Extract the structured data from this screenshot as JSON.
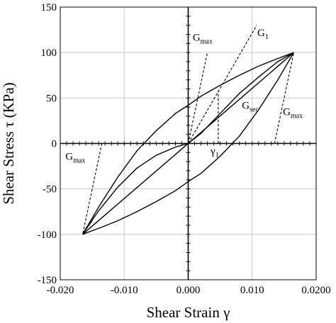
{
  "chart_data": {
    "type": "line",
    "xlabel": "Shear Strain γ",
    "ylabel": "Shear Stress τ (KPa)",
    "xlim": [
      -0.02,
      0.02
    ],
    "ylim": [
      -150,
      150
    ],
    "x_ticks": [
      "-0.020",
      "-0.010",
      "0.000",
      "0.010",
      "0.0200"
    ],
    "x_tick_values": [
      -0.02,
      -0.01,
      0.0,
      0.01,
      0.02
    ],
    "y_ticks": [
      "-150",
      "-100",
      "-50",
      "0",
      "50",
      "100",
      "150"
    ],
    "y_tick_values": [
      -150,
      -100,
      -50,
      0,
      50,
      100,
      150
    ],
    "grid": true,
    "series": [
      {
        "style": "solid",
        "x": [
          -0.0165,
          -0.014,
          -0.011,
          -0.008,
          -0.005,
          -0.002,
          0.0,
          0.002,
          0.005,
          0.008,
          0.011,
          0.0135,
          0.0165
        ],
        "y": [
          -100,
          -70,
          -37,
          -8,
          14,
          33,
          42,
          52,
          64,
          75,
          85,
          92,
          100
        ]
      },
      {
        "style": "solid",
        "x": [
          0.0165,
          0.014,
          0.011,
          0.008,
          0.005,
          0.002,
          0.0,
          -0.002,
          -0.005,
          -0.008,
          -0.011,
          -0.0135,
          -0.0165
        ],
        "y": [
          100,
          70,
          37,
          8,
          -14,
          -33,
          -42,
          -52,
          -64,
          -75,
          -85,
          -92,
          -100
        ]
      },
      {
        "style": "solid",
        "x": [
          -0.0165,
          -0.014,
          -0.011,
          -0.008,
          -0.005,
          -0.002,
          0.0,
          0.002,
          0.005,
          0.008,
          0.011,
          0.014,
          0.0165
        ],
        "y": [
          -100,
          -74,
          -48,
          -27,
          -13,
          -4,
          0,
          11,
          33,
          55,
          73,
          90,
          100
        ]
      },
      {
        "style": "solid",
        "x": [
          -0.0165,
          0.0165
        ],
        "y": [
          -100,
          100
        ]
      },
      {
        "style": "dashed",
        "x": [
          0.0,
          0.003
        ],
        "y": [
          0,
          100
        ]
      },
      {
        "style": "dashed",
        "x": [
          0.0,
          0.0107
        ],
        "y": [
          0,
          130
        ]
      },
      {
        "style": "dashed",
        "x": [
          0.0135,
          0.0165
        ],
        "y": [
          0,
          100
        ]
      },
      {
        "style": "dashed",
        "x": [
          -0.0135,
          -0.0165
        ],
        "y": [
          0,
          -100
        ]
      },
      {
        "style": "dashed",
        "x": [
          0.0047,
          0.0047
        ],
        "y": [
          0,
          58
        ]
      }
    ],
    "annotations": [
      {
        "base": "G",
        "sub": "max",
        "x": 0.0007,
        "y": 113
      },
      {
        "base": "G",
        "sub": "1",
        "x": 0.0108,
        "y": 118
      },
      {
        "base": "G",
        "sub": "sec",
        "x": 0.0084,
        "y": 38
      },
      {
        "base": "G",
        "sub": "max",
        "x": 0.0148,
        "y": 31
      },
      {
        "base": "G",
        "sub": "max",
        "x": -0.0192,
        "y": -18
      },
      {
        "base": "γ",
        "sub": "1",
        "x": 0.0035,
        "y": -12
      }
    ]
  }
}
